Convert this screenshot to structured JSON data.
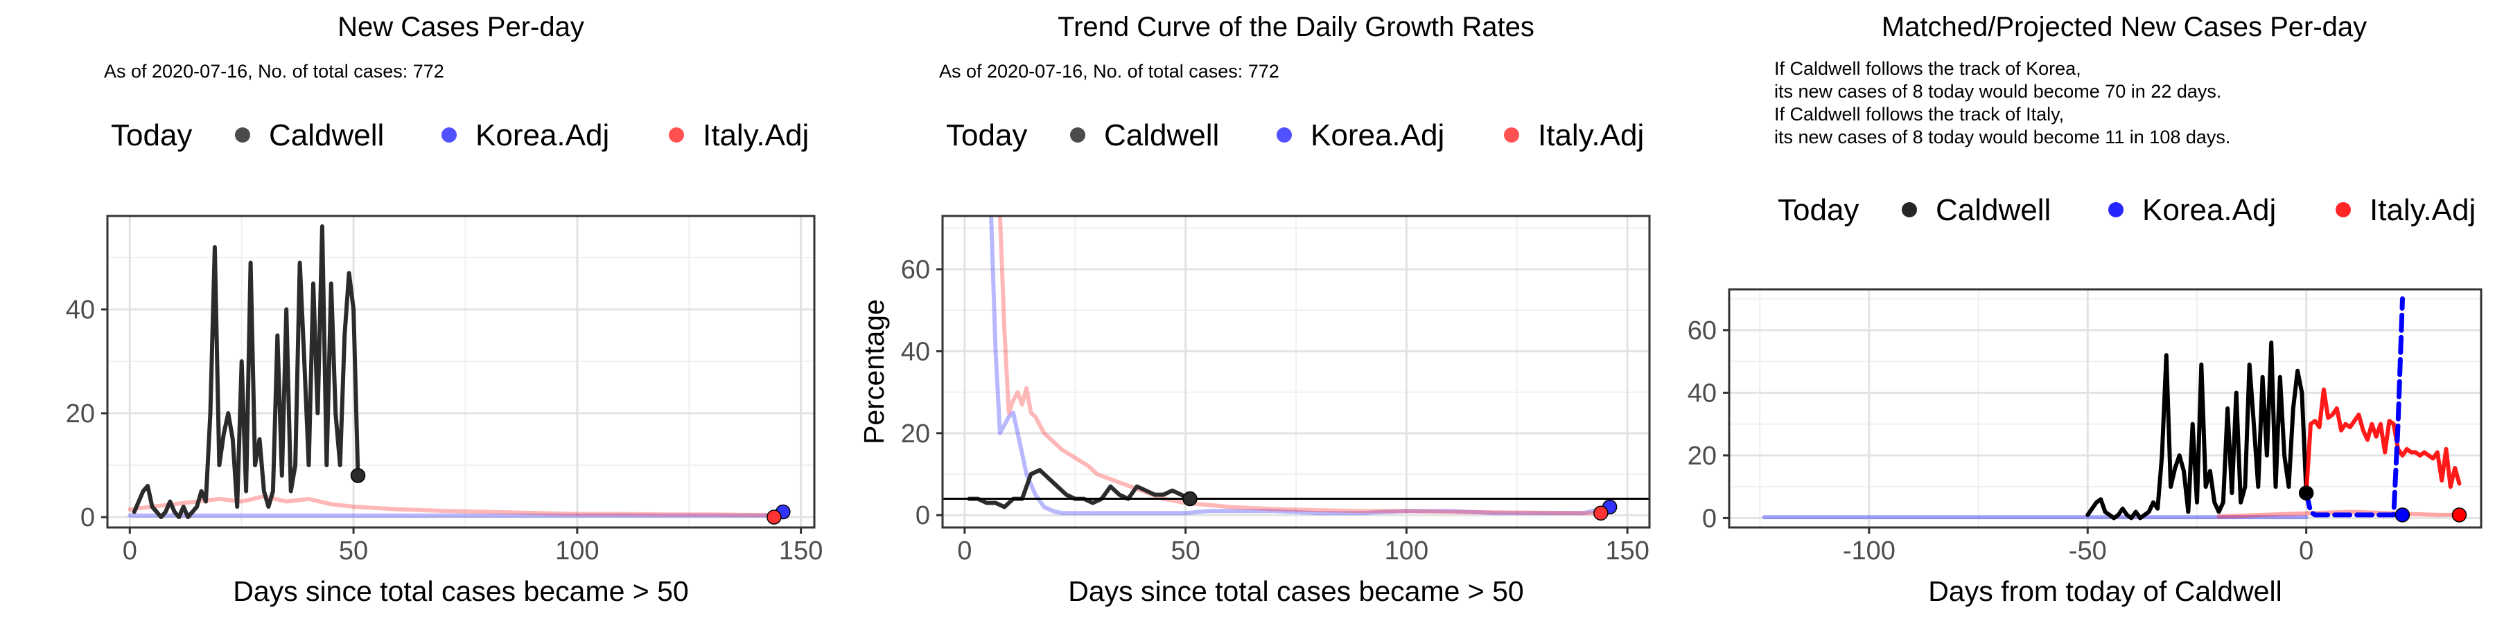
{
  "colors": {
    "today": "#222222",
    "caldwell": "#2b2b2b",
    "korea": "#3333ff",
    "italy": "#ff3333",
    "caldwell_p3": "#000000",
    "korea_p3": "#0000ff",
    "italy_p3": "#ff0000"
  },
  "chart_data": [
    {
      "type": "line",
      "title": "New Cases Per-day",
      "subtitle": "As of 2020-07-16, No. of total cases: 772",
      "legend": [
        "Today",
        "Caldwell",
        "Korea.Adj",
        "Italy.Adj"
      ],
      "xlabel": "Days since total cases became > 50",
      "ylabel": "",
      "xlim": [
        -5,
        153
      ],
      "ylim": [
        -2,
        58
      ],
      "xticks": [
        0,
        50,
        100,
        150
      ],
      "yticks": [
        0,
        20,
        40
      ],
      "hline": null,
      "series": [
        {
          "name": "Korea.Adj",
          "x": [
            0,
            146
          ],
          "y": [
            0.3,
            0.3
          ]
        },
        {
          "name": "Italy.Adj",
          "x": [
            0,
            5,
            10,
            15,
            20,
            25,
            30,
            35,
            40,
            45,
            50,
            60,
            70,
            80,
            90,
            100,
            110,
            120,
            130,
            140,
            144
          ],
          "y": [
            1.5,
            2,
            2.5,
            3,
            3.5,
            3,
            4,
            3,
            3.5,
            2.5,
            2,
            1.5,
            1.2,
            1,
            0.8,
            0.6,
            0.6,
            0.5,
            0.5,
            0.4,
            0.4
          ]
        },
        {
          "name": "Caldwell",
          "x": [
            1,
            3,
            4,
            5,
            6,
            7,
            8,
            9,
            10,
            11,
            12,
            13,
            14,
            15,
            16,
            17,
            18,
            19,
            20,
            21,
            22,
            23,
            24,
            25,
            26,
            27,
            28,
            29,
            30,
            31,
            32,
            33,
            34,
            35,
            36,
            37,
            38,
            39,
            40,
            41,
            42,
            43,
            44,
            45,
            46,
            47,
            48,
            49,
            50,
            51
          ],
          "y": [
            1,
            5,
            6,
            2,
            1,
            0,
            1,
            3,
            1,
            0,
            2,
            0,
            1,
            2,
            5,
            3,
            20,
            52,
            10,
            16,
            20,
            15,
            2,
            30,
            5,
            49,
            10,
            15,
            5,
            2,
            5,
            35,
            8,
            40,
            5,
            10,
            49,
            30,
            10,
            45,
            20,
            56,
            10,
            45,
            20,
            10,
            35,
            47,
            40,
            8
          ]
        }
      ],
      "today_points": [
        {
          "name": "Caldwell",
          "x": 51,
          "y": 8
        },
        {
          "name": "Korea.Adj",
          "x": 146,
          "y": 1
        },
        {
          "name": "Italy.Adj",
          "x": 144,
          "y": 0
        }
      ]
    },
    {
      "type": "line",
      "title": "Trend Curve of the Daily Growth Rates",
      "subtitle": "As of 2020-07-16, No. of total cases: 772",
      "legend": [
        "Today",
        "Caldwell",
        "Korea.Adj",
        "Italy.Adj"
      ],
      "xlabel": "Days since total cases became > 50",
      "ylabel": "Percentage",
      "xlim": [
        -5,
        155
      ],
      "ylim": [
        -3,
        73
      ],
      "xticks": [
        0,
        50,
        100,
        150
      ],
      "yticks": [
        0,
        20,
        40,
        60
      ],
      "hline": 4,
      "series": [
        {
          "name": "Korea.Adj",
          "x": [
            6,
            7,
            8,
            9,
            10,
            11,
            12,
            13,
            14,
            16,
            18,
            20,
            22,
            25,
            30,
            40,
            50,
            55,
            60,
            70,
            80,
            90,
            100,
            110,
            120,
            130,
            140,
            146
          ],
          "y": [
            73,
            40,
            20,
            22,
            24,
            25,
            20,
            15,
            10,
            5,
            2,
            1,
            0.5,
            0.5,
            0.5,
            0.5,
            0.5,
            1,
            1,
            1,
            0.5,
            0.5,
            1,
            1,
            0.5,
            0.5,
            0.5,
            2
          ]
        },
        {
          "name": "Italy.Adj",
          "x": [
            8,
            9,
            10,
            11,
            12,
            13,
            14,
            15,
            16,
            18,
            20,
            22,
            25,
            28,
            30,
            35,
            40,
            45,
            50,
            60,
            70,
            80,
            90,
            100,
            110,
            120,
            130,
            140,
            144
          ],
          "y": [
            73,
            45,
            25,
            28,
            30,
            27,
            31,
            25,
            24,
            20,
            18,
            16,
            14,
            12,
            10,
            8,
            6,
            4,
            3,
            2,
            1.5,
            1.2,
            1,
            1,
            0.8,
            0.7,
            0.6,
            0.5,
            0.5
          ]
        },
        {
          "name": "Caldwell",
          "x": 0,
          "x_list": [
            1,
            3,
            5,
            7,
            9,
            11,
            13,
            15,
            17,
            19,
            21,
            23,
            25,
            27,
            29,
            31,
            33,
            35,
            37,
            39,
            41,
            43,
            45,
            47,
            49,
            51
          ],
          "y": [
            4,
            4,
            3,
            3,
            2,
            4,
            4,
            10,
            11,
            9,
            7,
            5,
            4,
            4,
            3,
            4,
            7,
            5,
            4,
            7,
            6,
            5,
            5,
            6,
            5,
            4
          ]
        }
      ],
      "today_points": [
        {
          "name": "Caldwell",
          "x": 51,
          "y": 4
        },
        {
          "name": "Korea.Adj",
          "x": 146,
          "y": 2
        },
        {
          "name": "Italy.Adj",
          "x": 144,
          "y": 0.5
        }
      ]
    },
    {
      "type": "line",
      "title": "Matched/Projected New Cases Per-day",
      "notes": [
        "If Caldwell follows the track of Korea,",
        "its new cases of 8 today would become 70 in 22 days.",
        "If Caldwell follows the track of Italy,",
        "its new cases of 8 today would become 11 in 108 days."
      ],
      "legend": [
        "Today",
        "Caldwell",
        "Korea.Adj",
        "Italy.Adj"
      ],
      "xlabel": "Days from today of Caldwell",
      "ylabel": "",
      "xlim": [
        -132,
        40
      ],
      "ylim": [
        -3,
        73
      ],
      "xticks": [
        -100,
        -50,
        0
      ],
      "yticks": [
        0,
        20,
        40,
        60
      ],
      "hline": null,
      "series": [
        {
          "name": "Korea.Adj",
          "x": [
            -124,
            -115,
            -105,
            -95,
            -85,
            -75,
            -65,
            -55,
            -45,
            -35,
            -25,
            -15,
            -5,
            0
          ],
          "y": [
            0.3,
            0.3,
            0.3,
            0.3,
            0.3,
            0.3,
            0.3,
            0.3,
            0.3,
            0.3,
            0.3,
            0.3,
            0.3,
            0.3
          ]
        },
        {
          "name": "Italy.Adj",
          "x": [
            -20,
            -10,
            0,
            10,
            20,
            30,
            35
          ],
          "y": [
            0.5,
            1,
            1.5,
            2,
            1.5,
            1,
            1
          ]
        },
        {
          "name": "Caldwell",
          "x": [
            -50,
            -48,
            -47,
            -46,
            -45,
            -44,
            -43,
            -42,
            -41,
            -40,
            -39,
            -38,
            -37,
            -36,
            -35,
            -34,
            -33,
            -32,
            -31,
            -30,
            -29,
            -28,
            -27,
            -26,
            -25,
            -24,
            -23,
            -22,
            -21,
            -20,
            -19,
            -18,
            -17,
            -16,
            -15,
            -14,
            -13,
            -12,
            -11,
            -10,
            -9,
            -8,
            -7,
            -6,
            -5,
            -4,
            -3,
            -2,
            -1,
            0
          ],
          "y": [
            1,
            5,
            6,
            2,
            1,
            0,
            1,
            3,
            1,
            0,
            2,
            0,
            1,
            2,
            5,
            3,
            20,
            52,
            10,
            16,
            20,
            15,
            2,
            30,
            5,
            49,
            10,
            15,
            5,
            2,
            5,
            35,
            8,
            40,
            5,
            10,
            49,
            30,
            10,
            45,
            20,
            56,
            10,
            45,
            20,
            10,
            35,
            47,
            40,
            8
          ]
        },
        {
          "name": "Italy.Adj.projected",
          "x": [
            0,
            1,
            2,
            3,
            4,
            5,
            6,
            7,
            8,
            9,
            10,
            11,
            12,
            13,
            14,
            15,
            16,
            17,
            18,
            19,
            20,
            21,
            22,
            23,
            24,
            25,
            26,
            27,
            28,
            29,
            30,
            31,
            32,
            33,
            34,
            35
          ],
          "y": [
            8,
            30,
            31,
            29,
            41,
            32,
            33,
            35,
            28,
            30,
            29,
            31,
            33,
            28,
            25,
            30,
            26,
            30,
            21,
            31,
            30,
            22,
            20,
            22,
            21,
            21,
            20,
            21,
            20,
            19,
            21,
            12,
            22,
            10,
            16,
            11
          ]
        },
        {
          "name": "Korea.Adj.projected",
          "x": [
            0,
            1,
            2,
            5,
            10,
            15,
            20,
            21,
            22
          ],
          "y": [
            8,
            2,
            1,
            1,
            1,
            1,
            1,
            30,
            70
          ]
        }
      ],
      "today_points": [
        {
          "name": "Caldwell",
          "x": 0,
          "y": 8
        },
        {
          "name": "Korea.Adj",
          "x": 22,
          "y": 1
        },
        {
          "name": "Italy.Adj",
          "x": 35,
          "y": 1
        }
      ]
    }
  ]
}
